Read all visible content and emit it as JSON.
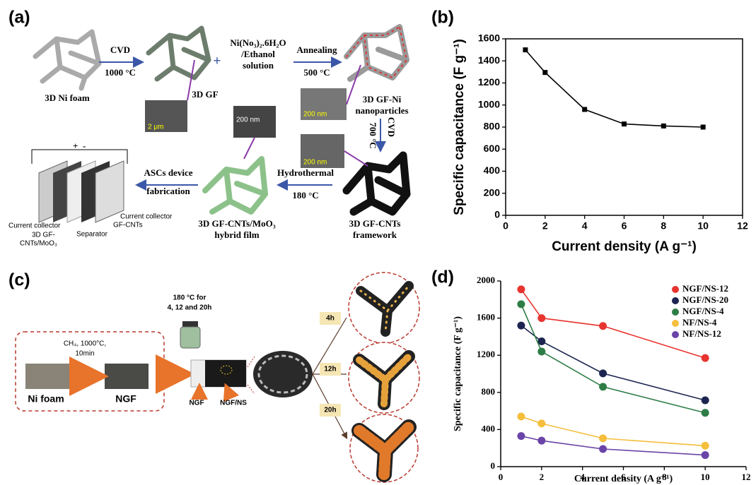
{
  "panel_labels": [
    "(a)",
    "(b)",
    "(c)",
    "(d)"
  ],
  "diagram_a": {
    "ni_foam": "3D Ni foam",
    "cvd_1": "CVD",
    "cvd_1_temp": "1000 °C",
    "gf": "3D GF",
    "gf_scale": "2 μm",
    "precursor": [
      "Ni(No₃)₂.6H₂O",
      "/Ethanol",
      "solution"
    ],
    "annealing": "Annealing",
    "annealing_temp": "500 °C",
    "gf_ni_scale": "200 nm",
    "gf_ni": [
      "3D GF-Ni",
      "nanoparticles"
    ],
    "cvd_2": "CVD",
    "cvd_2_temp": "700 °C",
    "cnt_scale": "200 nm",
    "gf_cnts": [
      "3D GF-CNTs",
      "framework"
    ],
    "hydrothermal": "Hydrothermal",
    "hydrothermal_temp": "180 °C",
    "hybrid_scale": "200 nm",
    "hybrid": [
      "3D GF-CNTs/MoO₃",
      "hybrid film"
    ],
    "device": [
      "ASCs device",
      "fabrication"
    ],
    "plus": "+",
    "minus": "-",
    "parts": [
      "Current collector",
      "GF-CNTs",
      "Current collector",
      "3D GF-",
      "CNTs/MoO₃",
      "Separator"
    ]
  },
  "diagram_c": {
    "growth": [
      "CH₄, 1000°C,",
      "10min"
    ],
    "ni_foam": "Ni foam",
    "ngf": "NGF",
    "hydro": [
      "180 °C for",
      "4, 12 and 20h"
    ],
    "ngf_arrow": "NGF",
    "ngf_ns_arrow": "NGF/NS",
    "times": [
      "4h",
      "12h",
      "20h"
    ]
  },
  "chart_data": [
    {
      "type": "line",
      "x": [
        1,
        2,
        4,
        6,
        8,
        10
      ],
      "values": [
        1500,
        1295,
        960,
        828,
        810,
        800
      ],
      "color": "#000000",
      "xlabel": "Current density (A g⁻¹)",
      "ylabel": "Specific capacitance (F g⁻¹)",
      "xlim": [
        0,
        12
      ],
      "xticks": [
        0,
        2,
        4,
        6,
        8,
        10,
        12
      ],
      "ylim": [
        0,
        1600
      ],
      "yticks": [
        0,
        200,
        400,
        600,
        800,
        1000,
        1200,
        1400,
        1600
      ]
    },
    {
      "type": "line",
      "x": [
        1,
        2,
        5,
        10
      ],
      "series": [
        {
          "name": "NGF/NS-12",
          "color": "#e8342f",
          "values": [
            1910,
            1600,
            1515,
            1170
          ]
        },
        {
          "name": "NGF/NS-20",
          "color": "#1c2550",
          "values": [
            1520,
            1350,
            1005,
            715
          ]
        },
        {
          "name": "NGF/NS-4",
          "color": "#2e7d46",
          "values": [
            1750,
            1240,
            860,
            580
          ]
        },
        {
          "name": "NF/NS-4",
          "color": "#f5be3c",
          "values": [
            540,
            465,
            305,
            225
          ]
        },
        {
          "name": "NF/NS-12",
          "color": "#6a44a8",
          "values": [
            330,
            280,
            190,
            125
          ]
        }
      ],
      "xlabel": "Current density (A g⁻¹)",
      "ylabel": "Specific capacitance (F g⁻¹)",
      "xlim": [
        0,
        12
      ],
      "xticks": [
        0,
        2,
        4,
        6,
        8,
        10,
        12
      ],
      "ylim": [
        0,
        2000
      ],
      "yticks": [
        0,
        400,
        800,
        1200,
        1600,
        2000
      ],
      "legend": "upper right"
    }
  ]
}
